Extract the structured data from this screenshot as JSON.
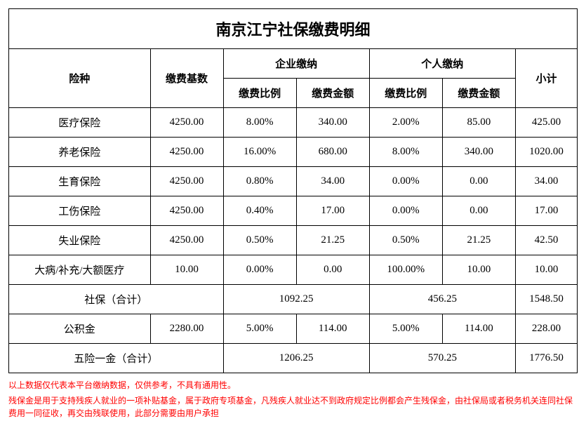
{
  "title": "南京江宁社保缴费明细",
  "headers": {
    "insurance_type": "险种",
    "base": "缴费基数",
    "company": "企业缴纳",
    "personal": "个人缴纳",
    "subtotal": "小计",
    "ratio": "缴费比例",
    "amount": "缴费金额"
  },
  "rows": [
    {
      "name": "医疗保险",
      "base": "4250.00",
      "c_ratio": "8.00%",
      "c_amount": "340.00",
      "p_ratio": "2.00%",
      "p_amount": "85.00",
      "subtotal": "425.00"
    },
    {
      "name": "养老保险",
      "base": "4250.00",
      "c_ratio": "16.00%",
      "c_amount": "680.00",
      "p_ratio": "8.00%",
      "p_amount": "340.00",
      "subtotal": "1020.00"
    },
    {
      "name": "生育保险",
      "base": "4250.00",
      "c_ratio": "0.80%",
      "c_amount": "34.00",
      "p_ratio": "0.00%",
      "p_amount": "0.00",
      "subtotal": "34.00"
    },
    {
      "name": "工伤保险",
      "base": "4250.00",
      "c_ratio": "0.40%",
      "c_amount": "17.00",
      "p_ratio": "0.00%",
      "p_amount": "0.00",
      "subtotal": "17.00"
    },
    {
      "name": "失业保险",
      "base": "4250.00",
      "c_ratio": "0.50%",
      "c_amount": "21.25",
      "p_ratio": "0.50%",
      "p_amount": "21.25",
      "subtotal": "42.50"
    },
    {
      "name": "大病/补充/大额医疗",
      "base": "10.00",
      "c_ratio": "0.00%",
      "c_amount": "0.00",
      "p_ratio": "100.00%",
      "p_amount": "10.00",
      "subtotal": "10.00"
    }
  ],
  "shebao_total": {
    "label": "社保（合计）",
    "company": "1092.25",
    "personal": "456.25",
    "subtotal": "1548.50"
  },
  "gongjijin": {
    "label": "公积金",
    "base": "2280.00",
    "c_ratio": "5.00%",
    "c_amount": "114.00",
    "p_ratio": "5.00%",
    "p_amount": "114.00",
    "subtotal": "228.00"
  },
  "grand_total": {
    "label": "五险一金（合计）",
    "company": "1206.25",
    "personal": "570.25",
    "subtotal": "1776.50"
  },
  "note1": "以上数据仅代表本平台缴纳数据，仅供参考，不具有通用性。",
  "note2": "残保金是用于支持残疾人就业的一项补贴基金，属于政府专项基金，凡残疾人就业达不到政府规定比例都会产生残保金，由社保局或者税务机关连同社保费用一同征收，再交由残联使用，此部分需要由用户承担",
  "style": {
    "border_color": "#000000",
    "background": "#ffffff",
    "note_color": "#ff0000",
    "title_fontsize": 22,
    "cell_fontsize": 15,
    "note_fontsize": 12,
    "font_family": "SimSun"
  }
}
